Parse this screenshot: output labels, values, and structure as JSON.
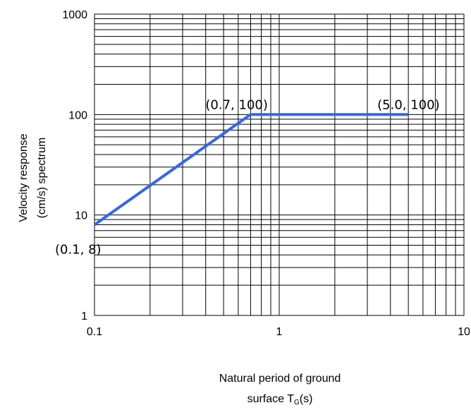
{
  "chart_data": {
    "type": "line",
    "title": "",
    "xlabel_line1": "Natural period of ground",
    "xlabel_line2_prefix": "surface T",
    "xlabel_line2_sub": "G",
    "xlabel_line2_suffix": "(s)",
    "ylabel_line1": "Velocity response",
    "ylabel_line2": "(cm/s) spectrum",
    "x_scale": "log",
    "y_scale": "log",
    "xlim": [
      0.1,
      10
    ],
    "ylim": [
      1,
      1000
    ],
    "x_ticks": [
      {
        "value": 0.1,
        "label": "0.1"
      },
      {
        "value": 1,
        "label": "1"
      },
      {
        "value": 10,
        "label": "10"
      }
    ],
    "y_ticks": [
      {
        "value": 1,
        "label": "1"
      },
      {
        "value": 10,
        "label": "10"
      },
      {
        "value": 100,
        "label": "100"
      },
      {
        "value": 1000,
        "label": "1000"
      }
    ],
    "grid": true,
    "series": [
      {
        "color": "#3366ee",
        "points": [
          {
            "x": 0.1,
            "y": 8
          },
          {
            "x": 0.7,
            "y": 100
          },
          {
            "x": 5.0,
            "y": 100
          }
        ]
      }
    ],
    "annotations": [
      {
        "text": "(0.1, 8)",
        "x": 0.1,
        "y": 8
      },
      {
        "text": "(0.7, 100)",
        "x": 0.7,
        "y": 100
      },
      {
        "text": "(5.0, 100)",
        "x": 5.0,
        "y": 100
      }
    ]
  }
}
